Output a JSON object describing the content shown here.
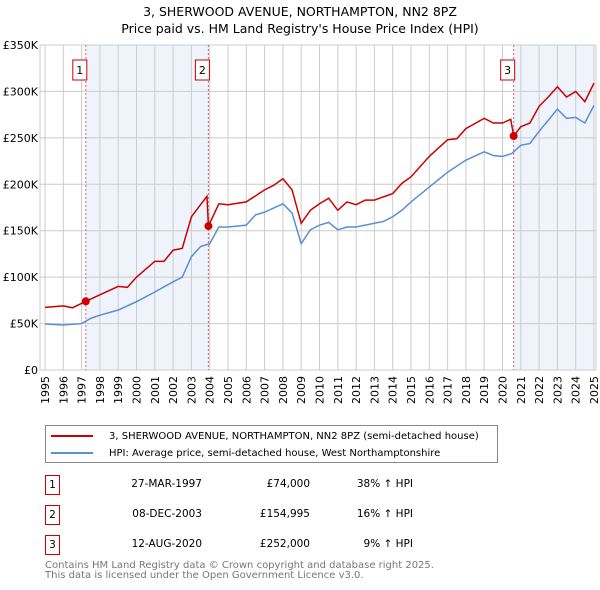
{
  "title": "3, SHERWOOD AVENUE, NORTHAMPTON, NN2 8PZ",
  "subtitle": "Price paid vs. HM Land Registry's House Price Index (HPI)",
  "chart_data": {
    "type": "line",
    "ylim": [
      0,
      350000
    ],
    "xlim": [
      1995,
      2025
    ],
    "yticks": [
      {
        "v": 0,
        "label": "£0"
      },
      {
        "v": 50000,
        "label": "£50K"
      },
      {
        "v": 100000,
        "label": "£100K"
      },
      {
        "v": 150000,
        "label": "£150K"
      },
      {
        "v": 200000,
        "label": "£200K"
      },
      {
        "v": 250000,
        "label": "£250K"
      },
      {
        "v": 300000,
        "label": "£300K"
      },
      {
        "v": 350000,
        "label": "£350K"
      }
    ],
    "xticks": [
      "1995",
      "1996",
      "1997",
      "1998",
      "1999",
      "2000",
      "2001",
      "2002",
      "2003",
      "2004",
      "2005",
      "2006",
      "2007",
      "2008",
      "2009",
      "2010",
      "2011",
      "2012",
      "2013",
      "2014",
      "2015",
      "2016",
      "2017",
      "2018",
      "2019",
      "2020",
      "2021",
      "2022",
      "2023",
      "2024",
      "2025"
    ],
    "grid": true,
    "colors": {
      "property": "#cc0000",
      "hpi": "#5b8fd4",
      "shade": "#eef3fc",
      "marker_line": "#e06060"
    },
    "shaded_ranges": [
      [
        1997.23,
        2003.93
      ],
      [
        2020.61,
        2025
      ]
    ],
    "series": [
      {
        "name": "3, SHERWOOD AVENUE, NORTHAMPTON, NN2 8PZ (semi-detached house)",
        "key": "property",
        "points": [
          [
            1995,
            67500
          ],
          [
            1996,
            69000
          ],
          [
            1996.5,
            67000
          ],
          [
            1997.23,
            74000
          ],
          [
            1998,
            81000
          ],
          [
            1999,
            90000
          ],
          [
            1999.5,
            89000
          ],
          [
            2000,
            100000
          ],
          [
            2001,
            117000
          ],
          [
            2001.5,
            117000
          ],
          [
            2002,
            129000
          ],
          [
            2002.5,
            131000
          ],
          [
            2003,
            165000
          ],
          [
            2003.5,
            178000
          ],
          [
            2003.85,
            187000
          ],
          [
            2003.93,
            154995
          ],
          [
            2004.5,
            179000
          ],
          [
            2005,
            178000
          ],
          [
            2006,
            181000
          ],
          [
            2007,
            194000
          ],
          [
            2007.5,
            199000
          ],
          [
            2008,
            206000
          ],
          [
            2008.5,
            194000
          ],
          [
            2009,
            158000
          ],
          [
            2009.5,
            172000
          ],
          [
            2010,
            179000
          ],
          [
            2010.5,
            185000
          ],
          [
            2011,
            172000
          ],
          [
            2011.5,
            181000
          ],
          [
            2012,
            178000
          ],
          [
            2012.5,
            183000
          ],
          [
            2013,
            183000
          ],
          [
            2014,
            190000
          ],
          [
            2014.5,
            201000
          ],
          [
            2015,
            208000
          ],
          [
            2016,
            230000
          ],
          [
            2017,
            248000
          ],
          [
            2017.5,
            249000
          ],
          [
            2018,
            260000
          ],
          [
            2019,
            271000
          ],
          [
            2019.5,
            266000
          ],
          [
            2020,
            266000
          ],
          [
            2020.45,
            270000
          ],
          [
            2020.61,
            252000
          ],
          [
            2021,
            262000
          ],
          [
            2021.5,
            266000
          ],
          [
            2022,
            284000
          ],
          [
            2022.5,
            294000
          ],
          [
            2023,
            305000
          ],
          [
            2023.5,
            294000
          ],
          [
            2024,
            300000
          ],
          [
            2024.5,
            289000
          ],
          [
            2025,
            309000
          ]
        ]
      },
      {
        "name": "HPI: Average price, semi-detached house, West Northamptonshire",
        "key": "hpi",
        "points": [
          [
            1995,
            49500
          ],
          [
            1996,
            48500
          ],
          [
            1997,
            50000
          ],
          [
            1997.5,
            55600
          ],
          [
            1998,
            59000
          ],
          [
            1999,
            64600
          ],
          [
            2000,
            73600
          ],
          [
            2001,
            84000
          ],
          [
            2002,
            95000
          ],
          [
            2002.5,
            100000
          ],
          [
            2003,
            122000
          ],
          [
            2003.5,
            133000
          ],
          [
            2004,
            136000
          ],
          [
            2004.5,
            154000
          ],
          [
            2005,
            154000
          ],
          [
            2006,
            156000
          ],
          [
            2006.5,
            167000
          ],
          [
            2007,
            170000
          ],
          [
            2008,
            179000
          ],
          [
            2008.5,
            169000
          ],
          [
            2009,
            136000
          ],
          [
            2009.5,
            151000
          ],
          [
            2010,
            156000
          ],
          [
            2010.5,
            159000
          ],
          [
            2011,
            151000
          ],
          [
            2011.5,
            154000
          ],
          [
            2012,
            154000
          ],
          [
            2013,
            158000
          ],
          [
            2013.5,
            160000
          ],
          [
            2014,
            165000
          ],
          [
            2014.5,
            172000
          ],
          [
            2015,
            181000
          ],
          [
            2016,
            197000
          ],
          [
            2016.5,
            205000
          ],
          [
            2017,
            213000
          ],
          [
            2018,
            226000
          ],
          [
            2019,
            235000
          ],
          [
            2019.5,
            231000
          ],
          [
            2020,
            230000
          ],
          [
            2020.5,
            233000
          ],
          [
            2021,
            242000
          ],
          [
            2021.5,
            244000
          ],
          [
            2022,
            257000
          ],
          [
            2022.5,
            269000
          ],
          [
            2023,
            281000
          ],
          [
            2023.5,
            271000
          ],
          [
            2024,
            272000
          ],
          [
            2024.5,
            266000
          ],
          [
            2025,
            285000
          ]
        ]
      }
    ],
    "sales": [
      {
        "label": "1",
        "x": 1997.23,
        "price": 74000,
        "date": "27-MAR-1997",
        "price_text": "£74,000",
        "hpi_text": "38% ↑ HPI"
      },
      {
        "label": "2",
        "x": 2003.93,
        "price": 154995,
        "date": "08-DEC-2003",
        "price_text": "£154,995",
        "hpi_text": "16% ↑ HPI"
      },
      {
        "label": "3",
        "x": 2020.61,
        "price": 252000,
        "date": "12-AUG-2020",
        "price_text": "£252,000",
        "hpi_text": "9% ↑ HPI"
      }
    ]
  },
  "legend": {
    "property": "3, SHERWOOD AVENUE, NORTHAMPTON, NN2 8PZ (semi-detached house)",
    "hpi": "HPI: Average price, semi-detached house, West Northamptonshire"
  },
  "footer": {
    "line1": "Contains HM Land Registry data © Crown copyright and database right 2025.",
    "line2": "This data is licensed under the Open Government Licence v3.0."
  }
}
